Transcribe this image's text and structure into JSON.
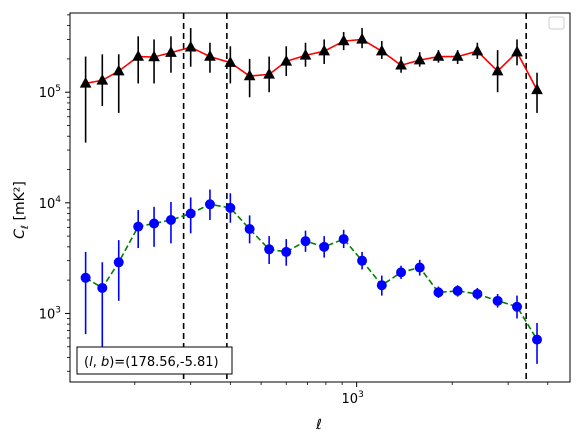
{
  "chart_data": {
    "type": "scatter",
    "title": "",
    "xlabel": "ℓ",
    "ylabel_main": "C",
    "ylabel_sub": "ℓ",
    "ylabel_unit": "[mK²]",
    "x_scale": "log",
    "y_scale": "log",
    "xlim": [
      125,
      4700
    ],
    "ylim": [
      240,
      520000
    ],
    "x_tick_major": [
      {
        "value": 1000,
        "base": "10",
        "exp": "3"
      }
    ],
    "y_tick_major": [
      {
        "value": 1000,
        "base": "10",
        "exp": "3"
      },
      {
        "value": 10000,
        "base": "10",
        "exp": "4"
      },
      {
        "value": 100000,
        "base": "10",
        "exp": "5"
      }
    ],
    "grid": false,
    "legend": {
      "placement": "top-right",
      "entries": []
    },
    "annotation": "(l, b)=(178.56,-5.81)",
    "vlines": [
      285,
      390,
      3420
    ],
    "series": [
      {
        "marker": "triangle",
        "marker_color": "#000000",
        "line_color": "#ff0000",
        "linestyle": "solid",
        "errorbar_color": "#000000",
        "points": [
          {
            "x": 140,
            "y": 120000,
            "lo": 35000,
            "hi": 210000
          },
          {
            "x": 158,
            "y": 128000,
            "lo": 75000,
            "hi": 220000
          },
          {
            "x": 178,
            "y": 155000,
            "lo": 65000,
            "hi": 220000
          },
          {
            "x": 205,
            "y": 210000,
            "lo": 120000,
            "hi": 320000
          },
          {
            "x": 230,
            "y": 208000,
            "lo": 120000,
            "hi": 300000
          },
          {
            "x": 260,
            "y": 228000,
            "lo": 150000,
            "hi": 320000
          },
          {
            "x": 300,
            "y": 255000,
            "lo": 170000,
            "hi": 380000
          },
          {
            "x": 345,
            "y": 210000,
            "lo": 150000,
            "hi": 280000
          },
          {
            "x": 400,
            "y": 185000,
            "lo": 120000,
            "hi": 260000
          },
          {
            "x": 460,
            "y": 140000,
            "lo": 90000,
            "hi": 200000
          },
          {
            "x": 530,
            "y": 145000,
            "lo": 100000,
            "hi": 210000
          },
          {
            "x": 600,
            "y": 190000,
            "lo": 140000,
            "hi": 260000
          },
          {
            "x": 690,
            "y": 215000,
            "lo": 170000,
            "hi": 280000
          },
          {
            "x": 790,
            "y": 235000,
            "lo": 180000,
            "hi": 300000
          },
          {
            "x": 910,
            "y": 290000,
            "lo": 240000,
            "hi": 350000
          },
          {
            "x": 1040,
            "y": 300000,
            "lo": 250000,
            "hi": 380000
          },
          {
            "x": 1200,
            "y": 235000,
            "lo": 200000,
            "hi": 290000
          },
          {
            "x": 1380,
            "y": 175000,
            "lo": 150000,
            "hi": 210000
          },
          {
            "x": 1580,
            "y": 195000,
            "lo": 170000,
            "hi": 230000
          },
          {
            "x": 1810,
            "y": 210000,
            "lo": 185000,
            "hi": 240000
          },
          {
            "x": 2080,
            "y": 210000,
            "lo": 180000,
            "hi": 240000
          },
          {
            "x": 2400,
            "y": 235000,
            "lo": 200000,
            "hi": 280000
          },
          {
            "x": 2780,
            "y": 155000,
            "lo": 100000,
            "hi": 240000
          },
          {
            "x": 3200,
            "y": 230000,
            "lo": 175000,
            "hi": 300000
          },
          {
            "x": 3700,
            "y": 105000,
            "lo": 65000,
            "hi": 150000
          }
        ]
      },
      {
        "marker": "circle",
        "marker_color": "#0000ff",
        "line_color": "#008000",
        "linestyle": "dashed",
        "errorbar_color": "#0000ff",
        "points": [
          {
            "x": 140,
            "y": 2100,
            "lo": 650,
            "hi": 3600
          },
          {
            "x": 158,
            "y": 1700,
            "lo": 480,
            "hi": 2900
          },
          {
            "x": 178,
            "y": 2900,
            "lo": 1300,
            "hi": 4600
          },
          {
            "x": 205,
            "y": 6100,
            "lo": 3900,
            "hi": 8600
          },
          {
            "x": 230,
            "y": 6500,
            "lo": 4000,
            "hi": 9200
          },
          {
            "x": 260,
            "y": 7000,
            "lo": 4300,
            "hi": 10200
          },
          {
            "x": 300,
            "y": 8000,
            "lo": 5300,
            "hi": 11200
          },
          {
            "x": 345,
            "y": 9700,
            "lo": 7000,
            "hi": 13200
          },
          {
            "x": 400,
            "y": 9000,
            "lo": 6600,
            "hi": 12200
          },
          {
            "x": 460,
            "y": 5800,
            "lo": 4300,
            "hi": 7700
          },
          {
            "x": 530,
            "y": 3800,
            "lo": 2800,
            "hi": 5000
          },
          {
            "x": 600,
            "y": 3600,
            "lo": 2700,
            "hi": 4700
          },
          {
            "x": 690,
            "y": 4500,
            "lo": 3600,
            "hi": 5600
          },
          {
            "x": 790,
            "y": 4000,
            "lo": 3200,
            "hi": 5000
          },
          {
            "x": 910,
            "y": 4700,
            "lo": 3900,
            "hi": 5700
          },
          {
            "x": 1040,
            "y": 3000,
            "lo": 2500,
            "hi": 3600
          },
          {
            "x": 1200,
            "y": 1800,
            "lo": 1450,
            "hi": 2200
          },
          {
            "x": 1380,
            "y": 2350,
            "lo": 2050,
            "hi": 2700
          },
          {
            "x": 1580,
            "y": 2600,
            "lo": 2200,
            "hi": 3050
          },
          {
            "x": 1810,
            "y": 1550,
            "lo": 1380,
            "hi": 1750
          },
          {
            "x": 2080,
            "y": 1600,
            "lo": 1420,
            "hi": 1800
          },
          {
            "x": 2400,
            "y": 1500,
            "lo": 1330,
            "hi": 1700
          },
          {
            "x": 2780,
            "y": 1300,
            "lo": 1130,
            "hi": 1500
          },
          {
            "x": 3200,
            "y": 1150,
            "lo": 900,
            "hi": 1450
          },
          {
            "x": 3700,
            "y": 580,
            "lo": 350,
            "hi": 820
          }
        ]
      }
    ]
  }
}
